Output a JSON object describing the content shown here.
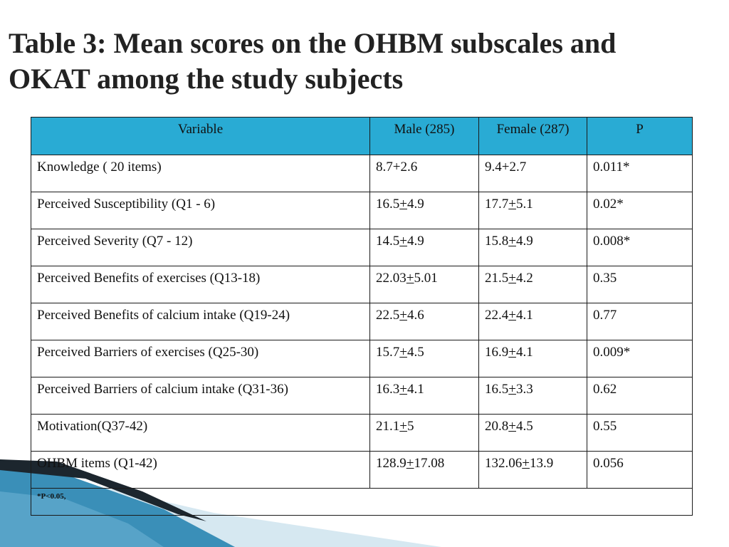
{
  "title": {
    "line1": "Table 3:  Mean scores on the OHBM subscales and",
    "line2": "OKAT among the study subjects"
  },
  "table": {
    "headers": [
      "Variable",
      "Male  (285)",
      "Female  (287)",
      "P"
    ],
    "rows": [
      {
        "variable": "Knowledge ( 20 items)",
        "male": "8.7+2.6",
        "female": "9.4+2.7",
        "p": "0.011*"
      },
      {
        "variable": "Perceived Susceptibility (Q1 - 6)",
        "male": "16.5+4.9",
        "female": "17.7+5.1",
        "p": "0.02*"
      },
      {
        "variable": "Perceived Severity (Q7 - 12)",
        "male": "14.5+4.9",
        "female": "15.8+4.9",
        "p": "0.008*"
      },
      {
        "variable": "Perceived Benefits of exercises (Q13-18)",
        "male": "22.03+5.01",
        "female": "21.5+4.2",
        "p": "0.35"
      },
      {
        "variable": "Perceived Benefits of calcium  intake (Q19-24)",
        "male": "22.5+4.6",
        "female": "22.4+4.1",
        "p": "0.77"
      },
      {
        "variable": "Perceived Barriers of exercises (Q25-30)",
        "male": "15.7+4.5",
        "female": "16.9+4.1",
        "p": "0.009*"
      },
      {
        "variable": "Perceived Barriers of calcium intake (Q31-36)",
        "male": "16.3+4.1",
        "female": "16.5+3.3",
        "p": "0.62"
      },
      {
        "variable": "Motivation(Q37-42)",
        "male": "21.1+5",
        "female": "20.8+4.5",
        "p": "0.55"
      },
      {
        "variable": "OHBM items (Q1-42)",
        "male": "128.9+17.08",
        "female": "132.06+13.9",
        "p": "0.056"
      }
    ],
    "footnote": "*P<0.05,"
  },
  "colors": {
    "header_bg": "#29abd4",
    "decor_dark": "#1f2a33",
    "decor_blue": "#2c7fa8",
    "decor_light": "#cfe3ee"
  }
}
